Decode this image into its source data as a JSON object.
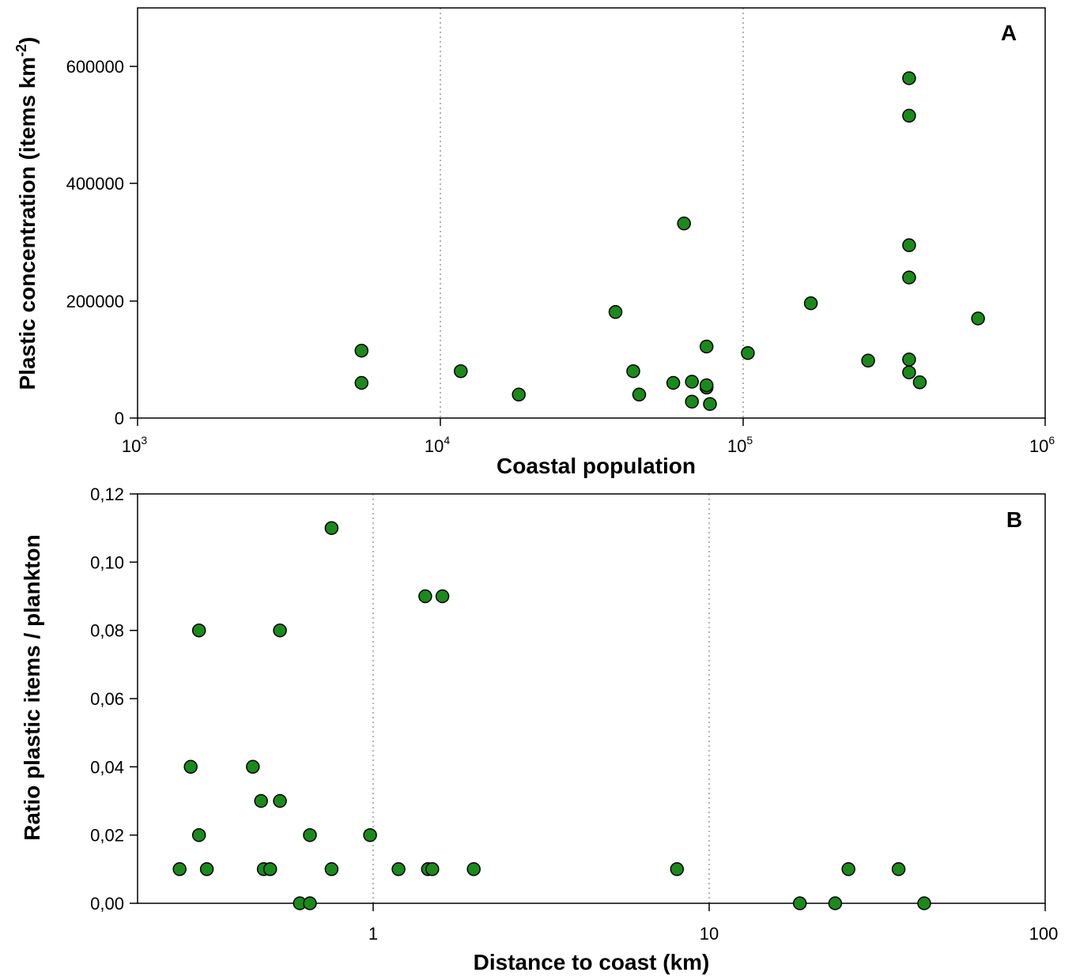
{
  "chart_data": [
    {
      "type": "scatter",
      "panel_label": "A",
      "xlabel": "Coastal population",
      "ylabel": "Plastic concentration (items km",
      "ylabel_superscript": "-2",
      "ylabel_suffix": ")",
      "x_scale": "log",
      "xlim": [
        1000,
        1000000
      ],
      "ylim": [
        0,
        700000
      ],
      "x_ticks": [
        {
          "value": 1000,
          "base": "10",
          "exp": "3"
        },
        {
          "value": 10000,
          "base": "10",
          "exp": "4"
        },
        {
          "value": 100000,
          "base": "10",
          "exp": "5"
        },
        {
          "value": 1000000,
          "base": "10",
          "exp": "6"
        }
      ],
      "y_ticks": [
        {
          "value": 0,
          "label": "0"
        },
        {
          "value": 200000,
          "label": "200000"
        },
        {
          "value": 400000,
          "label": "400000"
        },
        {
          "value": 600000,
          "label": "600000"
        }
      ],
      "vertical_gridlines": [
        10000,
        100000
      ],
      "marker_color": "#1a8a1a",
      "points": [
        {
          "x": 5500,
          "y": 115000
        },
        {
          "x": 5500,
          "y": 60000
        },
        {
          "x": 11700,
          "y": 80000
        },
        {
          "x": 18200,
          "y": 40000
        },
        {
          "x": 38000,
          "y": 181000
        },
        {
          "x": 43500,
          "y": 80000
        },
        {
          "x": 45500,
          "y": 40000
        },
        {
          "x": 59000,
          "y": 60000
        },
        {
          "x": 64000,
          "y": 332000
        },
        {
          "x": 68000,
          "y": 62000
        },
        {
          "x": 68000,
          "y": 28000
        },
        {
          "x": 76000,
          "y": 122000
        },
        {
          "x": 76000,
          "y": 52000
        },
        {
          "x": 76000,
          "y": 56000
        },
        {
          "x": 78000,
          "y": 24000
        },
        {
          "x": 104000,
          "y": 111000
        },
        {
          "x": 168000,
          "y": 196000
        },
        {
          "x": 260000,
          "y": 98000
        },
        {
          "x": 355000,
          "y": 580000
        },
        {
          "x": 355000,
          "y": 516000
        },
        {
          "x": 355000,
          "y": 295000
        },
        {
          "x": 355000,
          "y": 240000
        },
        {
          "x": 355000,
          "y": 100000
        },
        {
          "x": 355000,
          "y": 78000
        },
        {
          "x": 385000,
          "y": 61000
        },
        {
          "x": 600000,
          "y": 170000
        }
      ]
    },
    {
      "type": "scatter",
      "panel_label": "B",
      "xlabel": "Distance to coast (km)",
      "ylabel": "Ratio plastic items / plankton",
      "x_scale": "log",
      "xlim": [
        0.25,
        100
      ],
      "ylim": [
        0,
        0.12
      ],
      "x_ticks": [
        {
          "value": 1,
          "label": "1"
        },
        {
          "value": 10,
          "label": "10"
        },
        {
          "value": 100,
          "label": "100"
        }
      ],
      "y_ticks": [
        {
          "value": 0,
          "label": "0,00"
        },
        {
          "value": 0.02,
          "label": "0,02"
        },
        {
          "value": 0.04,
          "label": "0,04"
        },
        {
          "value": 0.06,
          "label": "0,06"
        },
        {
          "value": 0.08,
          "label": "0,08"
        },
        {
          "value": 0.1,
          "label": "0,10"
        },
        {
          "value": 0.12,
          "label": "0,12"
        }
      ],
      "vertical_gridlines": [
        1,
        10
      ],
      "marker_color": "#1a8a1a",
      "points": [
        {
          "x": 0.33,
          "y": 0.01
        },
        {
          "x": 0.355,
          "y": 0.04
        },
        {
          "x": 0.375,
          "y": 0.08
        },
        {
          "x": 0.375,
          "y": 0.02
        },
        {
          "x": 0.395,
          "y": 0.01
        },
        {
          "x": 0.535,
          "y": 0.04
        },
        {
          "x": 0.565,
          "y": 0.03
        },
        {
          "x": 0.575,
          "y": 0.01
        },
        {
          "x": 0.6,
          "y": 0.01
        },
        {
          "x": 0.64,
          "y": 0.08
        },
        {
          "x": 0.64,
          "y": 0.03
        },
        {
          "x": 0.73,
          "y": 0.0
        },
        {
          "x": 0.78,
          "y": 0.02
        },
        {
          "x": 0.78,
          "y": 0.0
        },
        {
          "x": 0.9,
          "y": 0.11
        },
        {
          "x": 0.9,
          "y": 0.01
        },
        {
          "x": 1.16,
          "y": 0.02
        },
        {
          "x": 1.4,
          "y": 0.01
        },
        {
          "x": 1.67,
          "y": 0.09
        },
        {
          "x": 1.7,
          "y": 0.01
        },
        {
          "x": 1.75,
          "y": 0.01
        },
        {
          "x": 1.87,
          "y": 0.09
        },
        {
          "x": 2.3,
          "y": 0.01
        },
        {
          "x": 8.8,
          "y": 0.01
        },
        {
          "x": 19.8,
          "y": 0.0
        },
        {
          "x": 25.0,
          "y": 0.0
        },
        {
          "x": 27.3,
          "y": 0.01
        },
        {
          "x": 38.0,
          "y": 0.01
        },
        {
          "x": 45.0,
          "y": 0.0
        }
      ]
    }
  ]
}
